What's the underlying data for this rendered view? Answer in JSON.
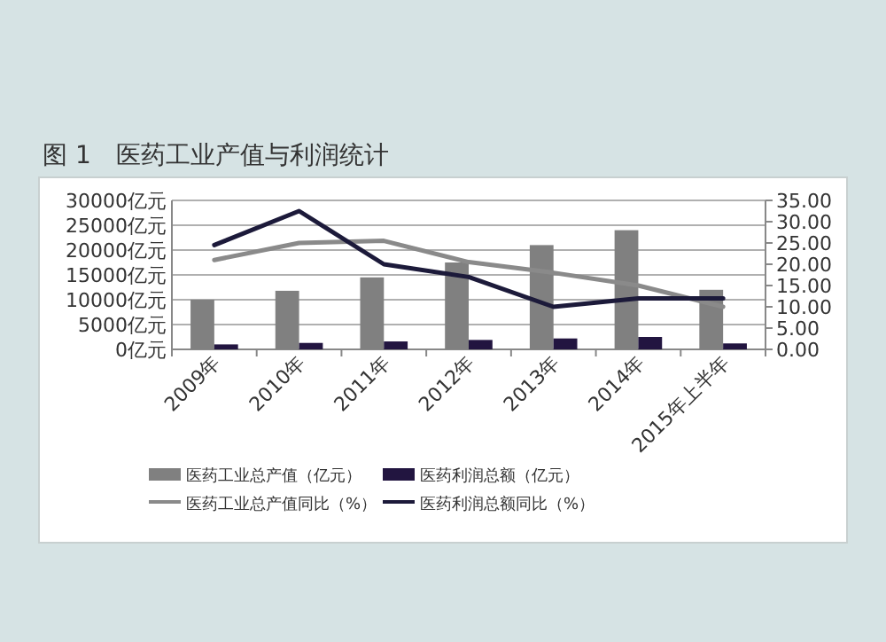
{
  "chart_data": {
    "type": "bar",
    "title": "图 1　医药工业产值与利润统计",
    "categories": [
      "2009年",
      "2010年",
      "2011年",
      "2012年",
      "2013年",
      "2014年",
      "2015年上半年"
    ],
    "series": [
      {
        "name": "医药工业总产值（亿元）",
        "color": "#808080",
        "values": [
          10000,
          11800,
          14500,
          17500,
          21000,
          24000,
          12000
        ]
      },
      {
        "name": "医药利润总额（亿元）",
        "color": "#221540",
        "values": [
          1000,
          1300,
          1600,
          1900,
          2200,
          2500,
          1200
        ]
      },
      {
        "name": "医药工业总产值同比（%）",
        "type": "line",
        "axis": "y2",
        "color": "#8a8a8a",
        "values": [
          21,
          25,
          25.5,
          20.5,
          18,
          15,
          10
        ]
      },
      {
        "name": "医药利润总额同比（%）",
        "type": "line",
        "axis": "y2",
        "color": "#1c1a3a",
        "values": [
          24.5,
          32.5,
          20,
          17,
          10,
          12,
          12
        ]
      }
    ],
    "ylim": [
      0,
      30000
    ],
    "yticks": [
      {
        "value": 0,
        "label": "0亿元"
      },
      {
        "value": 5000,
        "label": "5000亿元"
      },
      {
        "value": 10000,
        "label": "10000亿元"
      },
      {
        "value": 15000,
        "label": "15000亿元"
      },
      {
        "value": 20000,
        "label": "20000亿元"
      },
      {
        "value": 25000,
        "label": "25000亿元"
      },
      {
        "value": 30000,
        "label": "30000亿元"
      }
    ],
    "y2lim": [
      0,
      35
    ],
    "y2ticks": [
      {
        "value": 0,
        "label": "0.00"
      },
      {
        "value": 5,
        "label": "5.00"
      },
      {
        "value": 10,
        "label": "10.00"
      },
      {
        "value": 15,
        "label": "15.00"
      },
      {
        "value": 20,
        "label": "20.00"
      },
      {
        "value": 25,
        "label": "25.00"
      },
      {
        "value": 30,
        "label": "30.00"
      },
      {
        "value": 35,
        "label": "35.00"
      }
    ],
    "grid": "y",
    "legend": "bottom"
  }
}
